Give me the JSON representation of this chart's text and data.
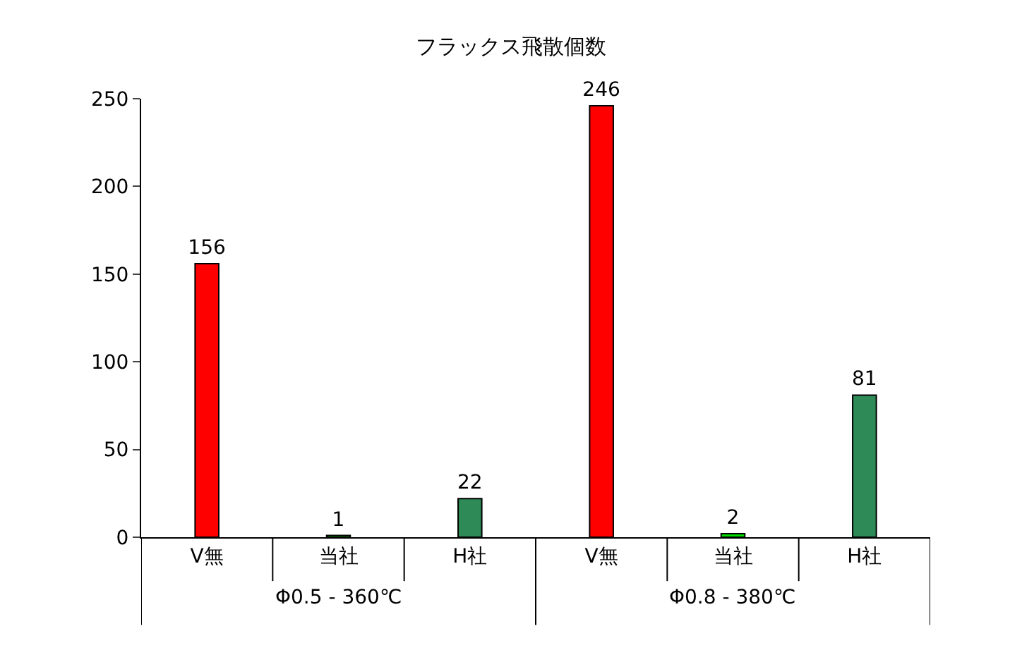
{
  "chart_data": {
    "type": "bar",
    "title": "フラックス飛散個数",
    "categories": [
      "V無",
      "当社",
      "H社",
      "V無",
      "当社",
      "H社"
    ],
    "values": [
      156,
      1,
      22,
      246,
      2,
      81
    ],
    "colors": [
      "#ff0000",
      "#00e000",
      "#2e8b57",
      "#ff0000",
      "#00e000",
      "#2e8b57"
    ],
    "ylim": [
      0,
      250
    ],
    "yticks": [
      0,
      50,
      100,
      150,
      200,
      250
    ],
    "data_labels": true,
    "annotations": [
      "Φ0.5 - 360℃",
      "Φ0.8 - 380℃"
    ]
  }
}
